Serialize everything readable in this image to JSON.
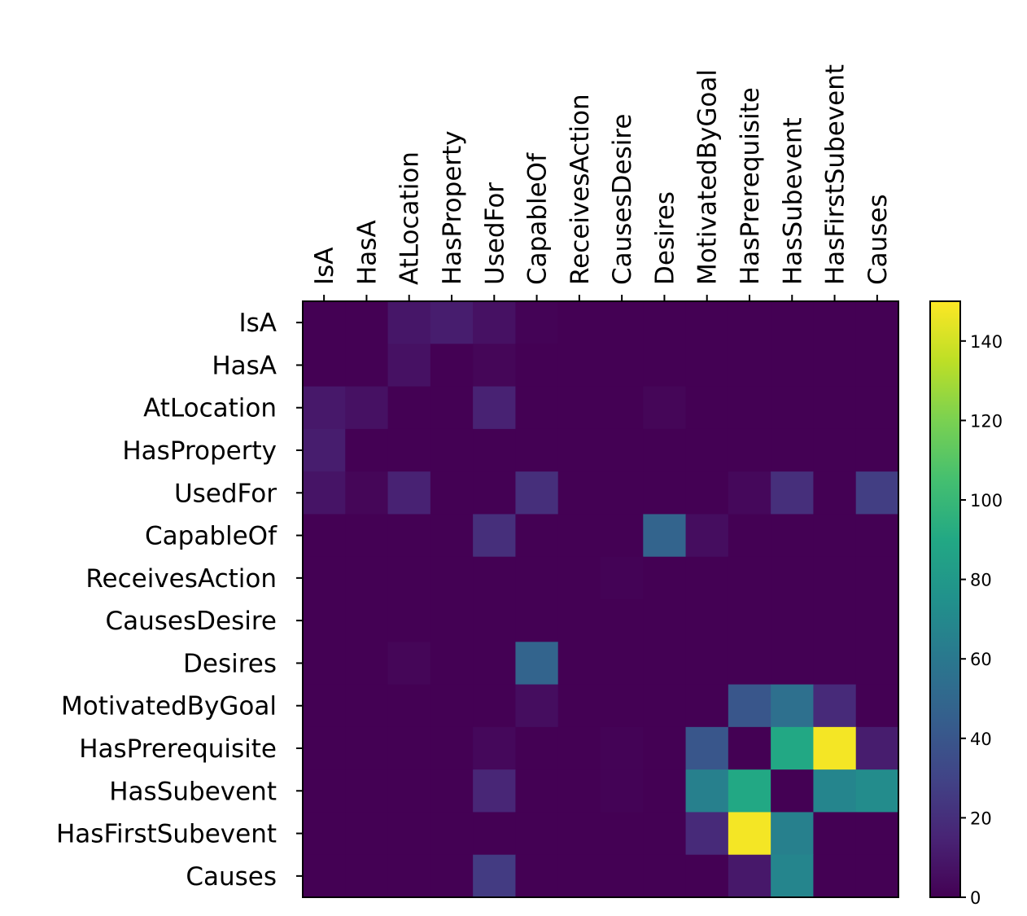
{
  "chart_data": {
    "type": "heatmap",
    "title": "",
    "xlabel": "",
    "ylabel": "",
    "x_categories": [
      "IsA",
      "HasA",
      "AtLocation",
      "HasProperty",
      "UsedFor",
      "CapableOf",
      "ReceivesAction",
      "CausesDesire",
      "Desires",
      "MotivatedByGoal",
      "HasPrerequisite",
      "HasSubevent",
      "HasFirstSubevent",
      "Causes"
    ],
    "y_categories": [
      "IsA",
      "HasA",
      "AtLocation",
      "HasProperty",
      "UsedFor",
      "CapableOf",
      "ReceivesAction",
      "CausesDesire",
      "Desires",
      "MotivatedByGoal",
      "HasPrerequisite",
      "HasSubevent",
      "HasFirstSubevent",
      "Causes"
    ],
    "x_tick_position": "top",
    "values": [
      [
        0,
        0,
        9,
        12,
        7,
        1,
        0,
        0,
        0,
        0,
        0,
        0,
        0,
        0
      ],
      [
        0,
        0,
        7,
        0,
        2,
        0,
        0,
        0,
        0,
        0,
        0,
        0,
        0,
        0
      ],
      [
        10,
        7,
        0,
        0,
        14,
        0,
        0,
        0,
        2,
        0,
        0,
        0,
        0,
        0
      ],
      [
        12,
        0,
        0,
        0,
        0,
        0,
        0,
        0,
        0,
        0,
        0,
        0,
        0,
        0
      ],
      [
        8,
        2,
        14,
        0,
        0,
        20,
        0,
        0,
        0,
        0,
        3,
        20,
        0,
        27
      ],
      [
        0,
        0,
        0,
        0,
        20,
        0,
        0,
        0,
        48,
        5,
        0,
        0,
        0,
        0
      ],
      [
        0,
        0,
        0,
        0,
        0,
        0,
        0,
        1,
        0,
        0,
        0,
        0,
        0,
        0
      ],
      [
        0,
        0,
        0,
        0,
        0,
        0,
        0,
        0,
        0,
        0,
        0,
        0,
        0,
        0
      ],
      [
        0,
        0,
        2,
        0,
        0,
        48,
        0,
        0,
        0,
        0,
        0,
        0,
        0,
        0
      ],
      [
        0,
        0,
        0,
        0,
        0,
        5,
        0,
        0,
        0,
        0,
        40,
        55,
        18,
        0
      ],
      [
        0,
        0,
        0,
        0,
        3,
        0,
        0,
        1,
        0,
        40,
        0,
        90,
        148,
        12
      ],
      [
        0,
        0,
        0,
        0,
        16,
        0,
        0,
        1,
        0,
        65,
        90,
        0,
        68,
        72
      ],
      [
        0,
        0,
        0,
        0,
        0,
        0,
        0,
        0,
        0,
        18,
        148,
        65,
        0,
        0
      ],
      [
        0,
        0,
        0,
        0,
        26,
        0,
        0,
        0,
        0,
        0,
        10,
        68,
        0,
        0
      ]
    ],
    "colormap": "viridis",
    "colorbar": {
      "min": 0,
      "max": 150,
      "ticks": [
        0,
        20,
        40,
        60,
        80,
        100,
        120,
        140
      ]
    }
  }
}
